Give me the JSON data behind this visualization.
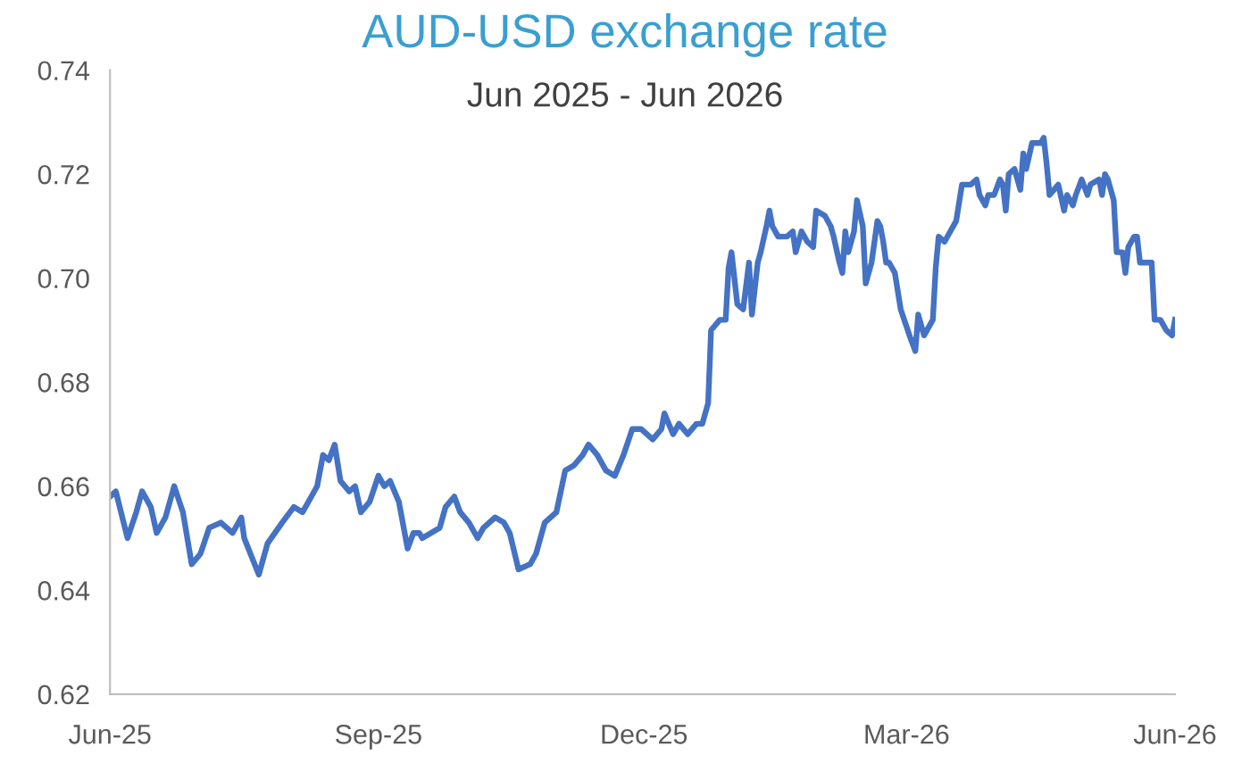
{
  "chart_data": {
    "type": "line",
    "title": "AUD-USD exchange rate",
    "subtitle": "Jun 2025 - Jun 2026",
    "x": [
      "2025-06-01",
      "2025-06-03",
      "2025-06-07",
      "2025-06-10",
      "2025-06-12",
      "2025-06-15",
      "2025-06-17",
      "2025-06-20",
      "2025-06-23",
      "2025-06-26",
      "2025-06-29",
      "2025-07-02",
      "2025-07-05",
      "2025-07-09",
      "2025-07-13",
      "2025-07-16",
      "2025-07-17",
      "2025-07-22",
      "2025-07-25",
      "2025-07-30",
      "2025-08-03",
      "2025-08-06",
      "2025-08-09",
      "2025-08-11",
      "2025-08-13",
      "2025-08-15",
      "2025-08-17",
      "2025-08-19",
      "2025-08-22",
      "2025-08-24",
      "2025-08-26",
      "2025-08-29",
      "2025-09-01",
      "2025-09-03",
      "2025-09-05",
      "2025-09-08",
      "2025-09-11",
      "2025-09-13",
      "2025-09-15",
      "2025-09-16",
      "2025-09-19",
      "2025-09-22",
      "2025-09-24",
      "2025-09-27",
      "2025-09-29",
      "2025-10-02",
      "2025-10-05",
      "2025-10-07",
      "2025-10-11",
      "2025-10-14",
      "2025-10-16",
      "2025-10-19",
      "2025-10-23",
      "2025-10-25",
      "2025-10-28",
      "2025-11-01",
      "2025-11-04",
      "2025-11-07",
      "2025-11-10",
      "2025-11-12",
      "2025-11-15",
      "2025-11-18",
      "2025-11-21",
      "2025-11-24",
      "2025-11-27",
      "2025-11-30",
      "2025-12-04",
      "2025-12-07",
      "2025-12-08",
      "2025-12-11",
      "2025-12-13",
      "2025-12-16",
      "2025-12-19",
      "2025-12-21",
      "2025-12-23",
      "2025-12-24",
      "2025-12-27",
      "2025-12-29",
      "2025-12-30",
      "2025-12-31",
      "2026-01-02",
      "2026-01-04",
      "2026-01-06",
      "2026-01-07",
      "2026-01-09",
      "2026-01-10",
      "2026-01-12",
      "2026-01-13",
      "2026-01-14",
      "2026-01-16",
      "2026-01-19",
      "2026-01-21",
      "2026-01-22",
      "2026-01-24",
      "2026-01-26",
      "2026-01-28",
      "2026-01-29",
      "2026-02-01",
      "2026-02-03",
      "2026-02-04",
      "2026-02-06",
      "2026-02-07",
      "2026-02-08",
      "2026-02-09",
      "2026-02-11",
      "2026-02-12",
      "2026-02-14",
      "2026-02-15",
      "2026-02-17",
      "2026-02-19",
      "2026-02-20",
      "2026-02-21",
      "2026-02-22",
      "2026-02-23",
      "2026-02-25",
      "2026-02-27",
      "2026-03-02",
      "2026-03-04",
      "2026-03-05",
      "2026-03-07",
      "2026-03-10",
      "2026-03-11",
      "2026-03-12",
      "2026-03-14",
      "2026-03-16",
      "2026-03-18",
      "2026-03-20",
      "2026-03-23",
      "2026-03-25",
      "2026-03-26",
      "2026-03-28",
      "2026-03-29",
      "2026-03-31",
      "2026-04-02",
      "2026-04-03",
      "2026-04-04",
      "2026-04-05",
      "2026-04-07",
      "2026-04-09",
      "2026-04-10",
      "2026-04-11",
      "2026-04-13",
      "2026-04-16",
      "2026-04-17",
      "2026-04-18",
      "2026-04-19",
      "2026-04-22",
      "2026-04-24",
      "2026-04-25",
      "2026-04-27",
      "2026-04-28",
      "2026-04-30",
      "2026-05-02",
      "2026-05-03",
      "2026-05-06",
      "2026-05-07",
      "2026-05-08",
      "2026-05-09",
      "2026-05-11",
      "2026-05-12",
      "2026-05-14",
      "2026-05-15",
      "2026-05-16",
      "2026-05-18",
      "2026-05-19",
      "2026-05-20",
      "2026-05-22",
      "2026-05-24",
      "2026-05-25",
      "2026-05-27",
      "2026-05-29",
      "2026-05-31",
      "2026-06-01"
    ],
    "series": [
      {
        "color": "#4472c4",
        "values": [
          0.658,
          0.659,
          0.65,
          0.655,
          0.659,
          0.656,
          0.651,
          0.654,
          0.66,
          0.655,
          0.645,
          0.647,
          0.652,
          0.653,
          0.651,
          0.654,
          0.65,
          0.643,
          0.649,
          0.653,
          0.656,
          0.655,
          0.658,
          0.66,
          0.666,
          0.665,
          0.668,
          0.661,
          0.659,
          0.66,
          0.655,
          0.657,
          0.662,
          0.66,
          0.661,
          0.657,
          0.648,
          0.651,
          0.651,
          0.65,
          0.651,
          0.652,
          0.656,
          0.658,
          0.655,
          0.653,
          0.65,
          0.652,
          0.654,
          0.653,
          0.651,
          0.644,
          0.645,
          0.647,
          0.653,
          0.655,
          0.663,
          0.664,
          0.666,
          0.668,
          0.666,
          0.663,
          0.662,
          0.666,
          0.671,
          0.671,
          0.669,
          0.671,
          0.674,
          0.67,
          0.672,
          0.67,
          0.672,
          0.672,
          0.676,
          0.69,
          0.692,
          0.692,
          0.702,
          0.705,
          0.695,
          0.694,
          0.703,
          0.693,
          0.703,
          0.705,
          0.71,
          0.713,
          0.71,
          0.708,
          0.708,
          0.709,
          0.705,
          0.709,
          0.707,
          0.706,
          0.713,
          0.712,
          0.71,
          0.708,
          0.703,
          0.701,
          0.709,
          0.705,
          0.709,
          0.715,
          0.71,
          0.699,
          0.703,
          0.711,
          0.71,
          0.707,
          0.703,
          0.703,
          0.701,
          0.694,
          0.689,
          0.686,
          0.693,
          0.689,
          0.692,
          0.702,
          0.708,
          0.707,
          0.709,
          0.711,
          0.718,
          0.718,
          0.719,
          0.716,
          0.714,
          0.716,
          0.716,
          0.719,
          0.718,
          0.713,
          0.72,
          0.721,
          0.717,
          0.724,
          0.721,
          0.726,
          0.726,
          0.727,
          0.722,
          0.716,
          0.718,
          0.713,
          0.716,
          0.714,
          0.716,
          0.719,
          0.716,
          0.718,
          0.719,
          0.716,
          0.72,
          0.719,
          0.715,
          0.705,
          0.705,
          0.701,
          0.706,
          0.708,
          0.708,
          0.703,
          0.703,
          0.703,
          0.692,
          0.692,
          0.69,
          0.689,
          0.692
        ]
      }
    ],
    "xlim": [
      "2025-06-01",
      "2026-06-01"
    ],
    "xticks": [
      {
        "value": "2025-06-01",
        "label": "Jun-25"
      },
      {
        "value": "2025-09-01",
        "label": "Sep-25"
      },
      {
        "value": "2025-12-01",
        "label": "Dec-25"
      },
      {
        "value": "2026-03-01",
        "label": "Mar-26"
      },
      {
        "value": "2026-06-01",
        "label": "Jun-26"
      }
    ],
    "ylim": [
      0.62,
      0.74
    ],
    "yticks": [
      {
        "value": 0.62,
        "label": "0.62"
      },
      {
        "value": 0.64,
        "label": "0.64"
      },
      {
        "value": 0.66,
        "label": "0.66"
      },
      {
        "value": 0.68,
        "label": "0.68"
      },
      {
        "value": 0.7,
        "label": "0.70"
      },
      {
        "value": 0.72,
        "label": "0.72"
      },
      {
        "value": 0.74,
        "label": "0.74"
      }
    ],
    "grid": false,
    "marker": "none",
    "line_style": "solid"
  }
}
